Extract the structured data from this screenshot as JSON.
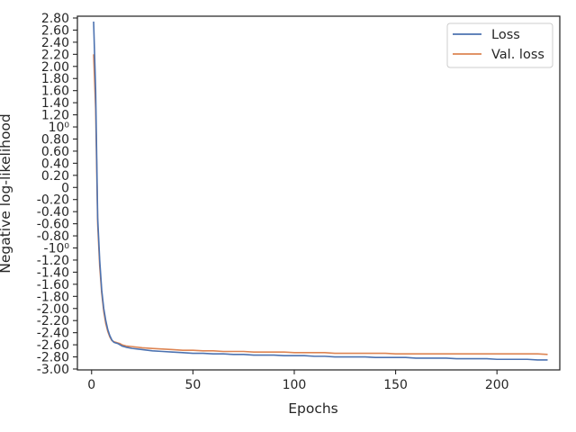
{
  "chart_data": {
    "type": "line",
    "xlabel": "Epochs",
    "ylabel": "Negative log-likelihood",
    "xlim": [
      -7,
      231
    ],
    "xticks": [
      0,
      50,
      100,
      150,
      200
    ],
    "ylim": [
      -3.0,
      2.8
    ],
    "yticks": [
      {
        "value": 2.8,
        "label": "2.80"
      },
      {
        "value": 2.6,
        "label": "2.60"
      },
      {
        "value": 2.4,
        "label": "2.40"
      },
      {
        "value": 2.2,
        "label": "2.20"
      },
      {
        "value": 2.0,
        "label": "2.00"
      },
      {
        "value": 1.8,
        "label": "1.80"
      },
      {
        "value": 1.6,
        "label": "1.60"
      },
      {
        "value": 1.4,
        "label": "1.40"
      },
      {
        "value": 1.2,
        "label": "1.20"
      },
      {
        "value": 1.0,
        "label": "10⁰"
      },
      {
        "value": 0.8,
        "label": "0.80"
      },
      {
        "value": 0.6,
        "label": "0.60"
      },
      {
        "value": 0.4,
        "label": "0.40"
      },
      {
        "value": 0.2,
        "label": "0.20"
      },
      {
        "value": 0.0,
        "label": "0"
      },
      {
        "value": -0.2,
        "label": "-0.20"
      },
      {
        "value": -0.4,
        "label": "-0.40"
      },
      {
        "value": -0.6,
        "label": "-0.60"
      },
      {
        "value": -0.8,
        "label": "-0.80"
      },
      {
        "value": -1.0,
        "label": "-10⁰"
      },
      {
        "value": -1.2,
        "label": "-1.20"
      },
      {
        "value": -1.4,
        "label": "-1.40"
      },
      {
        "value": -1.6,
        "label": "-1.60"
      },
      {
        "value": -1.8,
        "label": "-1.80"
      },
      {
        "value": -2.0,
        "label": "-2.00"
      },
      {
        "value": -2.2,
        "label": "-2.20"
      },
      {
        "value": -2.4,
        "label": "-2.40"
      },
      {
        "value": -2.6,
        "label": "-2.60"
      },
      {
        "value": -2.8,
        "label": "-2.80"
      },
      {
        "value": -3.0,
        "label": "-3.00"
      }
    ],
    "grid": false,
    "legend_position": "top-right",
    "series": [
      {
        "name": "Loss",
        "color": "#4c72b0",
        "x": [
          1,
          2,
          3,
          4,
          5,
          6,
          7,
          8,
          9,
          10,
          11,
          12,
          13,
          14,
          15,
          17,
          20,
          25,
          30,
          35,
          40,
          45,
          50,
          55,
          60,
          65,
          70,
          75,
          80,
          85,
          90,
          95,
          100,
          105,
          110,
          115,
          120,
          125,
          130,
          135,
          140,
          145,
          150,
          155,
          160,
          165,
          170,
          175,
          180,
          185,
          190,
          195,
          200,
          205,
          210,
          215,
          220,
          225
        ],
        "y": [
          2.74,
          1.6,
          -0.5,
          -1.2,
          -1.7,
          -2.0,
          -2.2,
          -2.35,
          -2.45,
          -2.52,
          -2.56,
          -2.57,
          -2.58,
          -2.6,
          -2.62,
          -2.64,
          -2.66,
          -2.68,
          -2.7,
          -2.71,
          -2.72,
          -2.73,
          -2.74,
          -2.74,
          -2.75,
          -2.75,
          -2.76,
          -2.76,
          -2.77,
          -2.77,
          -2.77,
          -2.78,
          -2.78,
          -2.78,
          -2.79,
          -2.79,
          -2.8,
          -2.8,
          -2.8,
          -2.8,
          -2.81,
          -2.81,
          -2.81,
          -2.81,
          -2.82,
          -2.82,
          -2.82,
          -2.82,
          -2.83,
          -2.83,
          -2.83,
          -2.83,
          -2.84,
          -2.84,
          -2.84,
          -2.84,
          -2.85,
          -2.85
        ]
      },
      {
        "name": "Val. loss",
        "color": "#dd8452",
        "x": [
          1,
          2,
          3,
          4,
          5,
          6,
          7,
          8,
          9,
          10,
          11,
          12,
          13,
          14,
          15,
          17,
          20,
          25,
          30,
          35,
          40,
          45,
          50,
          55,
          60,
          65,
          70,
          75,
          80,
          85,
          90,
          95,
          100,
          105,
          110,
          115,
          120,
          125,
          130,
          135,
          140,
          145,
          150,
          155,
          160,
          165,
          170,
          175,
          180,
          185,
          190,
          195,
          200,
          205,
          210,
          215,
          220,
          225
        ],
        "y": [
          2.2,
          1.3,
          -0.6,
          -1.3,
          -1.75,
          -2.05,
          -2.25,
          -2.38,
          -2.47,
          -2.53,
          -2.55,
          -2.56,
          -2.57,
          -2.58,
          -2.6,
          -2.62,
          -2.63,
          -2.65,
          -2.66,
          -2.67,
          -2.68,
          -2.69,
          -2.69,
          -2.7,
          -2.7,
          -2.71,
          -2.71,
          -2.71,
          -2.72,
          -2.72,
          -2.72,
          -2.72,
          -2.73,
          -2.73,
          -2.73,
          -2.73,
          -2.74,
          -2.74,
          -2.74,
          -2.74,
          -2.74,
          -2.74,
          -2.75,
          -2.75,
          -2.75,
          -2.75,
          -2.75,
          -2.75,
          -2.75,
          -2.75,
          -2.75,
          -2.75,
          -2.75,
          -2.75,
          -2.75,
          -2.75,
          -2.75,
          -2.76
        ]
      }
    ]
  }
}
